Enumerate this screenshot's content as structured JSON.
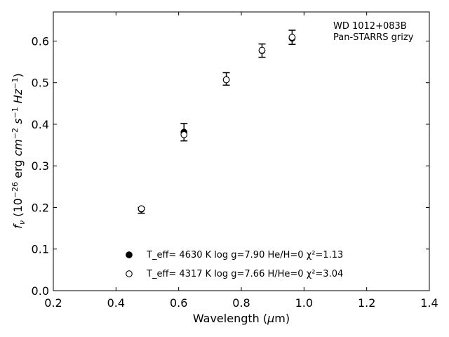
{
  "chart_data": {
    "type": "scatter",
    "title": "",
    "xlabel": "Wavelength (μm)",
    "ylabel": "f_ν (10^−26 erg cm^−2 s^−1 Hz^−1)",
    "xlim": [
      0.2,
      1.4
    ],
    "ylim": [
      0.0,
      0.67
    ],
    "xticks": [
      0.2,
      0.4,
      0.6,
      0.8,
      1.0,
      1.2,
      1.4
    ],
    "yticks": [
      0.0,
      0.1,
      0.2,
      0.3,
      0.4,
      0.5,
      0.6
    ],
    "xtick_labels": [
      "0.2",
      "0.4",
      "0.6",
      "0.8",
      "1.0",
      "1.2",
      "1.4"
    ],
    "ytick_labels": [
      "0.0",
      "0.1",
      "0.2",
      "0.3",
      "0.4",
      "0.5",
      "0.6"
    ],
    "grid": false,
    "annotation": [
      "WD 1012+083B",
      "Pan-STARRS grizy"
    ],
    "observed": {
      "x": [
        0.481,
        0.617,
        0.752,
        0.866,
        0.962
      ],
      "y": [
        0.193,
        0.381,
        0.509,
        0.577,
        0.609
      ],
      "yerr": [
        0.007,
        0.021,
        0.015,
        0.016,
        0.017
      ]
    },
    "series": [
      {
        "marker": "filled-circle",
        "legend_text": "T_eff=  4630 K  log g=7.90  He/H=0  χ²=1.13",
        "x": [
          0.481,
          0.617,
          0.752,
          0.866,
          0.962
        ],
        "y": [
          0.196,
          0.381,
          0.507,
          0.577,
          0.607
        ]
      },
      {
        "marker": "open-circle",
        "legend_text": "T_eff=  4317 K  log g=7.66  H/He=0  χ²=3.04",
        "x": [
          0.481,
          0.617,
          0.752,
          0.866,
          0.962
        ],
        "y": [
          0.197,
          0.375,
          0.507,
          0.578,
          0.609
        ]
      }
    ],
    "legend_position": "bottom-center"
  }
}
